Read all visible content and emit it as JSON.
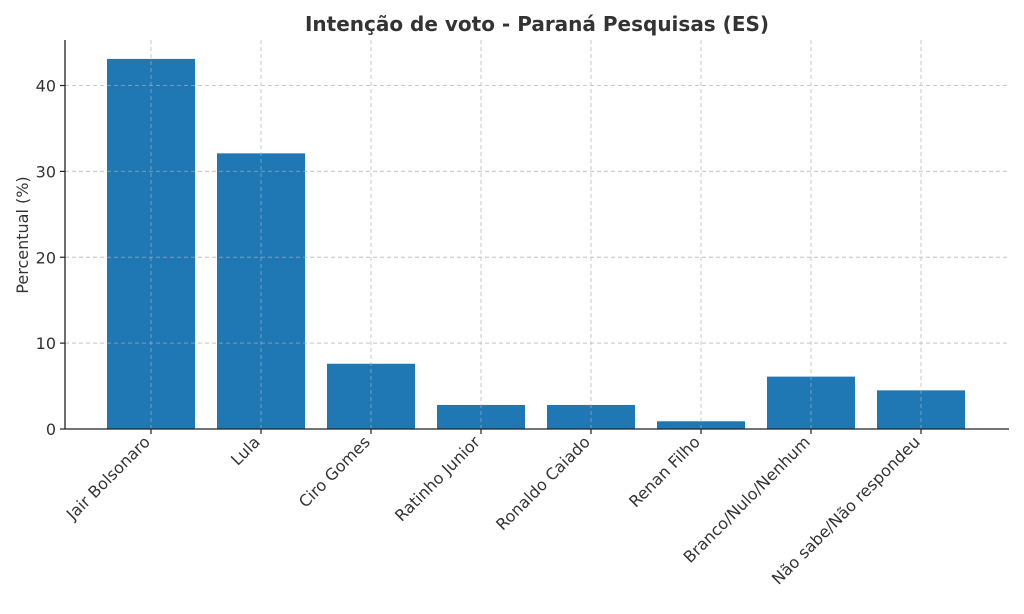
{
  "chart_data": {
    "type": "bar",
    "title": "Intenção de voto - Paraná Pesquisas (ES)",
    "xlabel": "",
    "ylabel": "Percentual (%)",
    "categories": [
      "Jair Bolsonaro",
      "Lula",
      "Ciro Gomes",
      "Ratinho Junior",
      "Ronaldo Caiado",
      "Renan Filho",
      "Branco/Nulo/Nenhum",
      "Não sabe/Não respondeu"
    ],
    "values": [
      43.1,
      32.1,
      7.6,
      2.8,
      2.8,
      0.9,
      6.1,
      4.5
    ],
    "ylim": [
      0,
      45.3
    ],
    "yticks": [
      0,
      10,
      20,
      30,
      40
    ],
    "grid": true,
    "bar_color": "#1f77b4"
  }
}
